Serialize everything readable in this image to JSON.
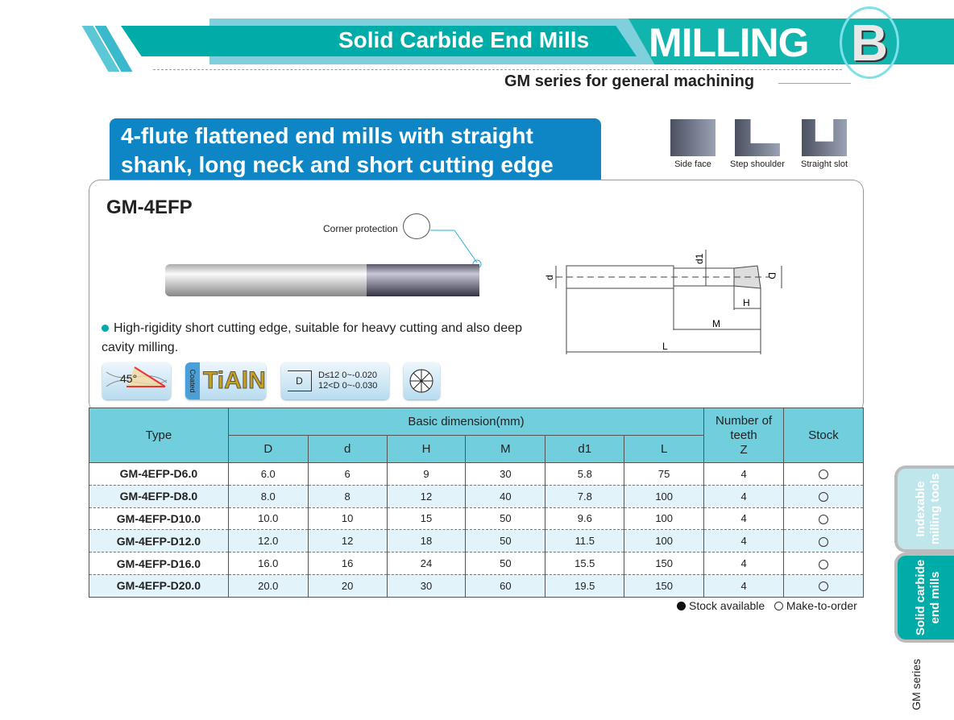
{
  "header": {
    "section_title": "Solid Carbide End Mills",
    "category": "MILLING",
    "chapter_letter": "B",
    "subtitle": "GM series for general machining"
  },
  "banner": {
    "line1": "4-flute flattened end mills with straight",
    "line2": "shank, long neck and short cutting edge"
  },
  "applications": [
    {
      "label": "Side face"
    },
    {
      "label": "Step shoulder"
    },
    {
      "label": "Straight slot"
    }
  ],
  "product": {
    "model": "GM-4EFP",
    "corner_label": "Corner protection",
    "description": "High-rigidity short cutting edge, suitable for heavy cutting and also deep cavity milling."
  },
  "features": {
    "helix_angle": "45°",
    "coating_label": "Coated",
    "coating": "TiAlN",
    "tol_symbol": "D",
    "tol_line1": "D≤12  0~-0.020",
    "tol_line2": "12<D  0~-0.030"
  },
  "diagram": {
    "labels": {
      "d": "d",
      "d1": "d1",
      "D": "D",
      "H": "H",
      "M": "M",
      "L": "L"
    }
  },
  "table": {
    "type_header": "Type",
    "basic_header": "Basic dimension(mm)",
    "teeth_header": "Number of teeth",
    "teeth_sub": "Z",
    "stock_header": "Stock",
    "dim_headers": [
      "D",
      "d",
      "H",
      "M",
      "d1",
      "L"
    ],
    "rows": [
      {
        "type": "GM-4EFP-D6.0",
        "D": "6.0",
        "d": "6",
        "H": "9",
        "M": "30",
        "d1": "5.8",
        "L": "75",
        "Z": "4",
        "stock": "make-to-order"
      },
      {
        "type": "GM-4EFP-D8.0",
        "D": "8.0",
        "d": "8",
        "H": "12",
        "M": "40",
        "d1": "7.8",
        "L": "100",
        "Z": "4",
        "stock": "make-to-order"
      },
      {
        "type": "GM-4EFP-D10.0",
        "D": "10.0",
        "d": "10",
        "H": "15",
        "M": "50",
        "d1": "9.6",
        "L": "100",
        "Z": "4",
        "stock": "make-to-order"
      },
      {
        "type": "GM-4EFP-D12.0",
        "D": "12.0",
        "d": "12",
        "H": "18",
        "M": "50",
        "d1": "11.5",
        "L": "100",
        "Z": "4",
        "stock": "make-to-order"
      },
      {
        "type": "GM-4EFP-D16.0",
        "D": "16.0",
        "d": "16",
        "H": "24",
        "M": "50",
        "d1": "15.5",
        "L": "150",
        "Z": "4",
        "stock": "make-to-order"
      },
      {
        "type": "GM-4EFP-D20.0",
        "D": "20.0",
        "d": "20",
        "H": "30",
        "M": "60",
        "d1": "19.5",
        "L": "150",
        "Z": "4",
        "stock": "make-to-order"
      }
    ]
  },
  "legend": {
    "available": "Stock available",
    "order": "Make-to-order"
  },
  "side_tabs": [
    {
      "label": "Indexable milling tools",
      "active": false
    },
    {
      "label": "Solid carbide end mills",
      "active": true
    }
  ],
  "side_footer": "GM series",
  "colors": {
    "teal": "#00aca7",
    "blue": "#0e86c6",
    "table_header": "#70cedd",
    "row_alt": "#e2f3fa"
  }
}
